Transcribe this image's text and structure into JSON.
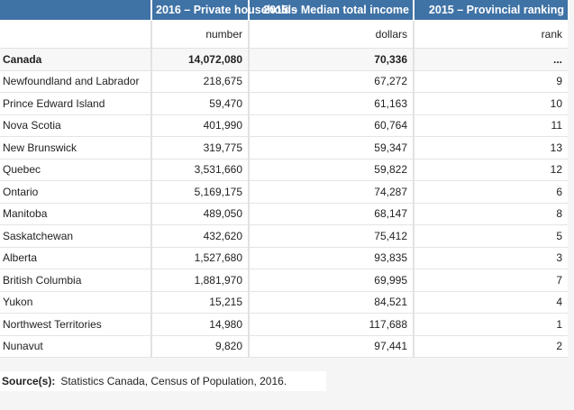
{
  "header": {
    "col1": "2016 – Private households",
    "col2": "2015 – Median total income",
    "col3": "2015 – Provincial ranking"
  },
  "units": {
    "col1": "number",
    "col2": "dollars",
    "col3": "rank"
  },
  "rows": [
    {
      "name": "Canada",
      "households": "14,072,080",
      "income": "70,336",
      "rank": "..."
    },
    {
      "name": "Newfoundland and Labrador",
      "households": "218,675",
      "income": "67,272",
      "rank": "9"
    },
    {
      "name": "Prince Edward Island",
      "households": "59,470",
      "income": "61,163",
      "rank": "10"
    },
    {
      "name": "Nova Scotia",
      "households": "401,990",
      "income": "60,764",
      "rank": "11"
    },
    {
      "name": "New Brunswick",
      "households": "319,775",
      "income": "59,347",
      "rank": "13"
    },
    {
      "name": "Quebec",
      "households": "3,531,660",
      "income": "59,822",
      "rank": "12"
    },
    {
      "name": "Ontario",
      "households": "5,169,175",
      "income": "74,287",
      "rank": "6"
    },
    {
      "name": "Manitoba",
      "households": "489,050",
      "income": "68,147",
      "rank": "8"
    },
    {
      "name": "Saskatchewan",
      "households": "432,620",
      "income": "75,412",
      "rank": "5"
    },
    {
      "name": "Alberta",
      "households": "1,527,680",
      "income": "93,835",
      "rank": "3"
    },
    {
      "name": "British Columbia",
      "households": "1,881,970",
      "income": "69,995",
      "rank": "7"
    },
    {
      "name": "Yukon",
      "households": "15,215",
      "income": "84,521",
      "rank": "4"
    },
    {
      "name": "Northwest Territories",
      "households": "14,980",
      "income": "117,688",
      "rank": "1"
    },
    {
      "name": "Nunavut",
      "households": "9,820",
      "income": "97,441",
      "rank": "2"
    }
  ],
  "source": {
    "label": "Source(s):",
    "text": "Statistics Canada, Census of Population, 2016."
  },
  "colors": {
    "header_bg": "#3f72a5",
    "header_text": "#ffffff",
    "page_bg": "#f5f5f5"
  }
}
